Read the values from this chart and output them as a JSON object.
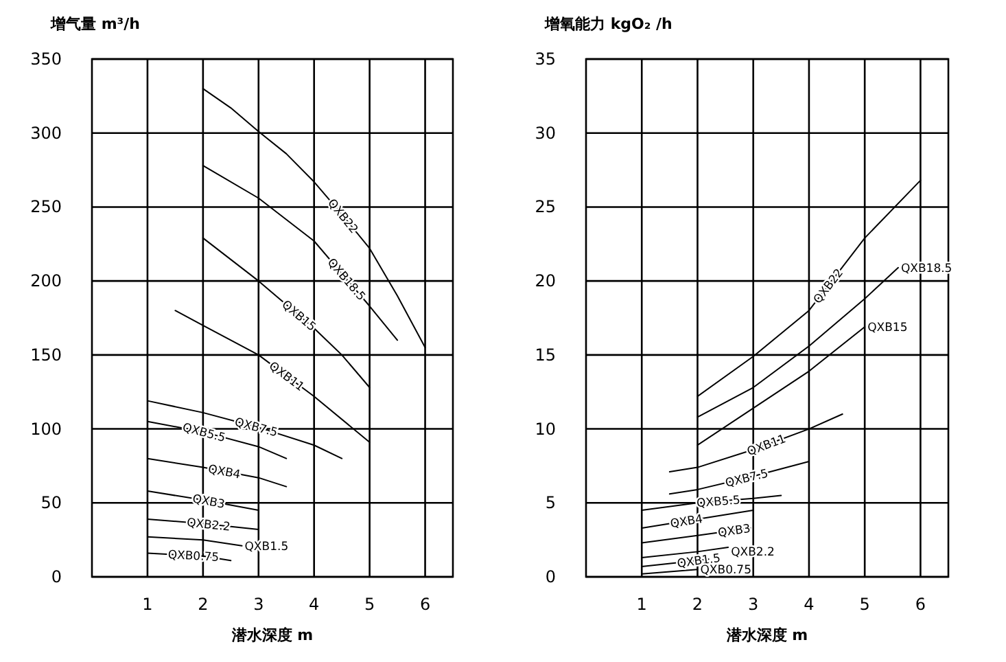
{
  "chart_data": [
    {
      "type": "line",
      "ylabel": "增气量 m³/h",
      "xlabel": "潜水深度 m",
      "xlim": [
        0,
        6.5
      ],
      "ylim": [
        0,
        350
      ],
      "xticks": [
        1,
        2,
        3,
        4,
        5,
        6
      ],
      "yticks": [
        0,
        50,
        100,
        150,
        200,
        250,
        300,
        350
      ],
      "grid": true,
      "marker": "none",
      "line_style": "solid",
      "series": [
        {
          "name": "QXB22",
          "color": "#000000",
          "x": [
            2,
            2.5,
            3,
            3.5,
            4,
            4.5,
            5,
            5.5,
            6
          ],
          "values": [
            330,
            317,
            301,
            286,
            267,
            245,
            222,
            190,
            155
          ]
        },
        {
          "name": "QXB18.5",
          "color": "#000000",
          "x": [
            2,
            3,
            4,
            4.5,
            5,
            5.5
          ],
          "values": [
            278,
            256,
            227,
            205,
            183,
            160
          ]
        },
        {
          "name": "QXB15",
          "color": "#000000",
          "x": [
            2,
            3,
            4,
            4.5,
            5
          ],
          "values": [
            229,
            200,
            168,
            150,
            128
          ]
        },
        {
          "name": "QXB11",
          "color": "#000000",
          "x": [
            1.5,
            2,
            3,
            4,
            5
          ],
          "values": [
            180,
            170,
            150,
            122,
            91
          ]
        },
        {
          "name": "QXB7.5",
          "color": "#000000",
          "x": [
            1,
            2,
            3,
            4,
            4.5
          ],
          "values": [
            119,
            111,
            101,
            89,
            80
          ]
        },
        {
          "name": "QXB5.5",
          "color": "#000000",
          "x": [
            1,
            2,
            3,
            3.5
          ],
          "values": [
            105,
            98,
            88,
            80
          ]
        },
        {
          "name": "QXB4",
          "color": "#000000",
          "x": [
            1,
            2,
            3,
            3.5
          ],
          "values": [
            80,
            74,
            67,
            61
          ]
        },
        {
          "name": "QXB3",
          "color": "#000000",
          "x": [
            1,
            2,
            3
          ],
          "values": [
            58,
            52,
            45
          ]
        },
        {
          "name": "QXB2.2",
          "color": "#000000",
          "x": [
            1,
            2,
            3
          ],
          "values": [
            39,
            36,
            32
          ]
        },
        {
          "name": "QXB1.5",
          "color": "#000000",
          "x": [
            1,
            2,
            2.7
          ],
          "values": [
            27,
            25,
            21
          ]
        },
        {
          "name": "QXB0.75",
          "color": "#000000",
          "x": [
            1,
            2,
            2.5
          ],
          "values": [
            16,
            14,
            11
          ]
        }
      ]
    },
    {
      "type": "line",
      "ylabel": "增氧能力 kgO₂ /h",
      "xlabel": "潜水深度 m",
      "xlim": [
        0,
        6.5
      ],
      "ylim": [
        0,
        35
      ],
      "xticks": [
        1,
        2,
        3,
        4,
        5,
        6
      ],
      "yticks": [
        0,
        5,
        10,
        15,
        20,
        25,
        30,
        35
      ],
      "grid": true,
      "marker": "none",
      "line_style": "solid",
      "series": [
        {
          "name": "QXB22",
          "color": "#000000",
          "x": [
            2,
            3,
            4,
            5,
            6
          ],
          "values": [
            12.2,
            14.9,
            18,
            22.9,
            26.8
          ]
        },
        {
          "name": "QXB18.5",
          "color": "#000000",
          "x": [
            2,
            3,
            4,
            5,
            5.6
          ],
          "values": [
            10.8,
            12.8,
            15.6,
            18.8,
            20.9
          ]
        },
        {
          "name": "QXB15",
          "color": "#000000",
          "x": [
            2,
            3,
            4,
            5
          ],
          "values": [
            8.9,
            11.4,
            13.9,
            16.9
          ]
        },
        {
          "name": "QXB11",
          "color": "#000000",
          "x": [
            1.5,
            2,
            3,
            4,
            4.6
          ],
          "values": [
            7.1,
            7.4,
            8.6,
            10,
            11
          ]
        },
        {
          "name": "QXB7.5",
          "color": "#000000",
          "x": [
            1.5,
            2,
            3,
            4
          ],
          "values": [
            5.6,
            5.9,
            6.8,
            7.8
          ]
        },
        {
          "name": "QXB5.5",
          "color": "#000000",
          "x": [
            1,
            2,
            3,
            3.5
          ],
          "values": [
            4.5,
            5,
            5.3,
            5.5
          ]
        },
        {
          "name": "QXB4",
          "color": "#000000",
          "x": [
            1,
            2,
            3
          ],
          "values": [
            3.3,
            3.9,
            4.5
          ]
        },
        {
          "name": "QXB3",
          "color": "#000000",
          "x": [
            1,
            2,
            2.95
          ],
          "values": [
            2.3,
            2.8,
            3.3
          ]
        },
        {
          "name": "QXB2.2",
          "color": "#000000",
          "x": [
            1,
            2,
            2.55
          ],
          "values": [
            1.3,
            1.7,
            2
          ]
        },
        {
          "name": "QXB1.5",
          "color": "#000000",
          "x": [
            1,
            2,
            2.2
          ],
          "values": [
            0.7,
            1.1,
            1.2
          ]
        },
        {
          "name": "QXB0.75",
          "color": "#000000",
          "x": [
            1,
            2
          ],
          "values": [
            0.2,
            0.5
          ]
        }
      ]
    }
  ]
}
